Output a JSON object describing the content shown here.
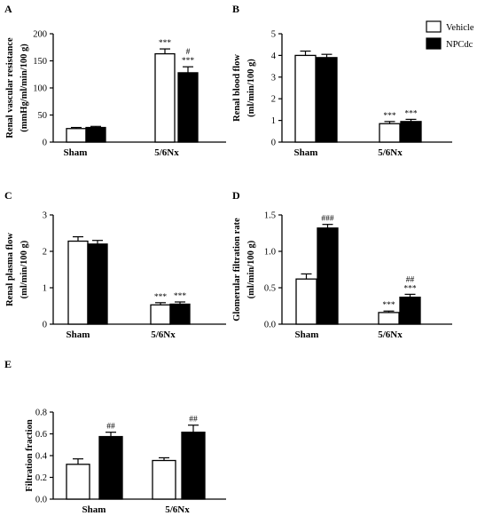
{
  "legend": {
    "entries": [
      {
        "label": "Vehicle",
        "color": "#ffffff"
      },
      {
        "label": "NPCdc",
        "color": "#000000"
      }
    ],
    "placement": "top-right"
  },
  "chart_data": [
    {
      "panel": "A",
      "type": "bar",
      "ylabel": [
        "Renal vascular resistance",
        "(mmHg/ml/min/100 g)"
      ],
      "ylim": [
        0,
        200
      ],
      "yticks": [
        0,
        50,
        100,
        150,
        200
      ],
      "categories": [
        "Sham",
        "5/6Nx"
      ],
      "series": [
        {
          "name": "Vehicle",
          "color": "#ffffff",
          "values": [
            25,
            163
          ],
          "errors": [
            2,
            9
          ]
        },
        {
          "name": "NPCdc",
          "color": "#000000",
          "values": [
            27,
            128
          ],
          "errors": [
            2,
            11
          ]
        }
      ],
      "annotations": [
        {
          "category": 1,
          "series": 0,
          "lines": [
            "***"
          ]
        },
        {
          "category": 1,
          "series": 1,
          "lines": [
            "#",
            "***"
          ]
        }
      ]
    },
    {
      "panel": "B",
      "type": "bar",
      "ylabel": [
        "Renal blood flow",
        "(ml/min/100 g)"
      ],
      "ylim": [
        0,
        5
      ],
      "yticks": [
        0,
        1,
        2,
        3,
        4,
        5
      ],
      "categories": [
        "Sham",
        "5/6Nx"
      ],
      "series": [
        {
          "name": "Vehicle",
          "color": "#ffffff",
          "values": [
            4.0,
            0.85
          ],
          "errors": [
            0.2,
            0.1
          ]
        },
        {
          "name": "NPCdc",
          "color": "#000000",
          "values": [
            3.9,
            0.95
          ],
          "errors": [
            0.15,
            0.1
          ]
        }
      ],
      "annotations": [
        {
          "category": 1,
          "series": 0,
          "lines": [
            "***"
          ]
        },
        {
          "category": 1,
          "series": 1,
          "lines": [
            "***"
          ]
        }
      ]
    },
    {
      "panel": "C",
      "type": "bar",
      "ylabel": [
        "Renal plasma flow",
        "(ml/min/100 g)"
      ],
      "ylim": [
        0,
        3
      ],
      "yticks": [
        0,
        1,
        2,
        3
      ],
      "categories": [
        "Sham",
        "5/6Nx"
      ],
      "series": [
        {
          "name": "Vehicle",
          "color": "#ffffff",
          "values": [
            2.28,
            0.53
          ],
          "errors": [
            0.12,
            0.06
          ]
        },
        {
          "name": "NPCdc",
          "color": "#000000",
          "values": [
            2.2,
            0.55
          ],
          "errors": [
            0.1,
            0.06
          ]
        }
      ],
      "annotations": [
        {
          "category": 1,
          "series": 0,
          "lines": [
            "***"
          ]
        },
        {
          "category": 1,
          "series": 1,
          "lines": [
            "***"
          ]
        }
      ]
    },
    {
      "panel": "D",
      "type": "bar",
      "ylabel": [
        "Glomerular filtration rate",
        "(ml/min/100 g)"
      ],
      "ylim": [
        0,
        1.5
      ],
      "yticks": [
        0,
        0.5,
        1.0,
        1.5
      ],
      "ytick_labels": [
        "0.0",
        "0.5",
        "1.0",
        "1.5"
      ],
      "categories": [
        "Sham",
        "5/6Nx"
      ],
      "series": [
        {
          "name": "Vehicle",
          "color": "#ffffff",
          "values": [
            0.62,
            0.16
          ],
          "errors": [
            0.07,
            0.02
          ]
        },
        {
          "name": "NPCdc",
          "color": "#000000",
          "values": [
            1.32,
            0.37
          ],
          "errors": [
            0.05,
            0.04
          ]
        }
      ],
      "annotations": [
        {
          "category": 0,
          "series": 1,
          "lines": [
            "###"
          ]
        },
        {
          "category": 1,
          "series": 0,
          "lines": [
            "***"
          ]
        },
        {
          "category": 1,
          "series": 1,
          "lines": [
            "##",
            "***"
          ]
        }
      ]
    },
    {
      "panel": "E",
      "type": "bar",
      "ylabel": [
        "Filtration fraction"
      ],
      "ylim": [
        0,
        0.8
      ],
      "yticks": [
        0,
        0.2,
        0.4,
        0.6,
        0.8
      ],
      "ytick_labels": [
        "0.0",
        "0.2",
        "0.4",
        "0.6",
        "0.8"
      ],
      "categories": [
        "Sham",
        "5/6Nx"
      ],
      "series": [
        {
          "name": "Vehicle",
          "color": "#ffffff",
          "values": [
            0.32,
            0.355
          ],
          "errors": [
            0.05,
            0.025
          ]
        },
        {
          "name": "NPCdc",
          "color": "#000000",
          "values": [
            0.575,
            0.615
          ],
          "errors": [
            0.04,
            0.065
          ]
        }
      ],
      "annotations": [
        {
          "category": 0,
          "series": 1,
          "lines": [
            "##"
          ]
        },
        {
          "category": 1,
          "series": 1,
          "lines": [
            "##"
          ]
        }
      ]
    }
  ]
}
